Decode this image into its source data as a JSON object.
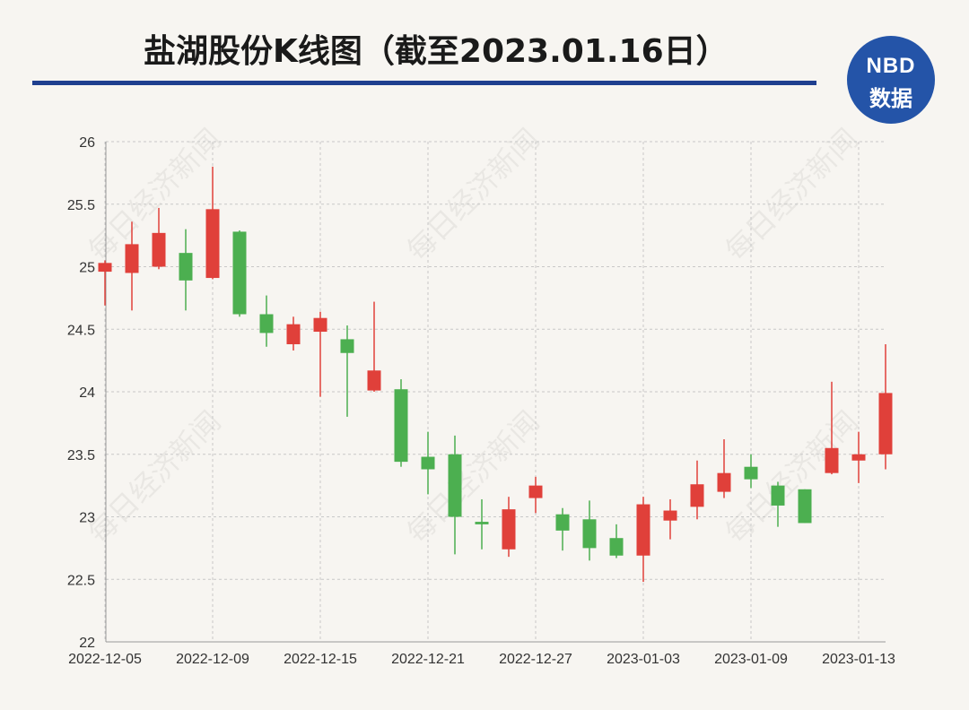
{
  "header": {
    "title": "盐湖股份K线图（截至2023.01.16日）",
    "logo_line1": "NBD",
    "logo_line2": "数据",
    "rule_color": "#1f3f8f",
    "logo_color": "#2454a8"
  },
  "watermark": "每日经济新闻",
  "colors": {
    "up": "#e0403a",
    "down": "#4caf50",
    "grid": "#c8c8c8"
  },
  "chart_data": {
    "type": "candlestick",
    "title": "盐湖股份K线图（截至2023.01.16日）",
    "xlabel": "",
    "ylabel": "",
    "ylim": [
      22,
      26
    ],
    "yticks": [
      22,
      22.5,
      23,
      23.5,
      24,
      24.5,
      25,
      25.5,
      26
    ],
    "grid": true,
    "xtick_labels": [
      "2022-12-05",
      "2022-12-09",
      "2022-12-15",
      "2022-12-21",
      "2022-12-27",
      "2023-01-03",
      "2023-01-09",
      "2023-01-13"
    ],
    "xtick_positions": [
      0,
      4,
      8,
      12,
      16,
      20,
      24,
      28
    ],
    "candles": [
      {
        "date": "2022-12-05",
        "open": 24.96,
        "close": 25.03,
        "high": 25.05,
        "low": 24.69
      },
      {
        "date": "2022-12-06",
        "open": 24.95,
        "close": 25.18,
        "high": 25.36,
        "low": 24.65
      },
      {
        "date": "2022-12-07",
        "open": 25.0,
        "close": 25.27,
        "high": 25.47,
        "low": 24.98
      },
      {
        "date": "2022-12-08",
        "open": 25.11,
        "close": 24.89,
        "high": 25.3,
        "low": 24.65
      },
      {
        "date": "2022-12-09",
        "open": 24.91,
        "close": 25.46,
        "high": 25.8,
        "low": 24.9
      },
      {
        "date": "2022-12-12",
        "open": 25.28,
        "close": 24.62,
        "high": 25.29,
        "low": 24.6
      },
      {
        "date": "2022-12-13",
        "open": 24.62,
        "close": 24.47,
        "high": 24.77,
        "low": 24.36
      },
      {
        "date": "2022-12-14",
        "open": 24.38,
        "close": 24.54,
        "high": 24.6,
        "low": 24.33
      },
      {
        "date": "2022-12-15",
        "open": 24.48,
        "close": 24.59,
        "high": 24.64,
        "low": 23.96
      },
      {
        "date": "2022-12-16",
        "open": 24.42,
        "close": 24.31,
        "high": 24.53,
        "low": 23.8
      },
      {
        "date": "2022-12-19",
        "open": 24.01,
        "close": 24.17,
        "high": 24.72,
        "low": 24.0
      },
      {
        "date": "2022-12-20",
        "open": 24.02,
        "close": 23.44,
        "high": 24.1,
        "low": 23.4
      },
      {
        "date": "2022-12-21",
        "open": 23.48,
        "close": 23.38,
        "high": 23.68,
        "low": 23.18
      },
      {
        "date": "2022-12-22",
        "open": 23.5,
        "close": 23.0,
        "high": 23.65,
        "low": 22.7
      },
      {
        "date": "2022-12-23",
        "open": 22.96,
        "close": 22.94,
        "high": 23.14,
        "low": 22.74
      },
      {
        "date": "2022-12-26",
        "open": 22.74,
        "close": 23.06,
        "high": 23.16,
        "low": 22.68
      },
      {
        "date": "2022-12-27",
        "open": 23.15,
        "close": 23.25,
        "high": 23.32,
        "low": 23.03
      },
      {
        "date": "2022-12-28",
        "open": 23.02,
        "close": 22.89,
        "high": 23.07,
        "low": 22.73
      },
      {
        "date": "2022-12-29",
        "open": 22.98,
        "close": 22.75,
        "high": 23.13,
        "low": 22.65
      },
      {
        "date": "2022-12-30",
        "open": 22.83,
        "close": 22.69,
        "high": 22.94,
        "low": 22.67
      },
      {
        "date": "2023-01-03",
        "open": 22.69,
        "close": 23.1,
        "high": 23.16,
        "low": 22.48
      },
      {
        "date": "2023-01-04",
        "open": 22.97,
        "close": 23.05,
        "high": 23.14,
        "low": 22.82
      },
      {
        "date": "2023-01-05",
        "open": 23.08,
        "close": 23.26,
        "high": 23.45,
        "low": 22.98
      },
      {
        "date": "2023-01-06",
        "open": 23.2,
        "close": 23.35,
        "high": 23.62,
        "low": 23.15
      },
      {
        "date": "2023-01-09",
        "open": 23.4,
        "close": 23.3,
        "high": 23.5,
        "low": 23.23
      },
      {
        "date": "2023-01-10",
        "open": 23.25,
        "close": 23.09,
        "high": 23.28,
        "low": 22.92
      },
      {
        "date": "2023-01-11",
        "open": 23.22,
        "close": 22.95,
        "high": 23.22,
        "low": 22.95
      },
      {
        "date": "2023-01-12",
        "open": 23.35,
        "close": 23.55,
        "high": 24.08,
        "low": 23.34
      },
      {
        "date": "2023-01-13",
        "open": 23.45,
        "close": 23.5,
        "high": 23.68,
        "low": 23.27
      },
      {
        "date": "2023-01-16",
        "open": 23.5,
        "close": 23.99,
        "high": 24.38,
        "low": 23.38
      }
    ]
  }
}
